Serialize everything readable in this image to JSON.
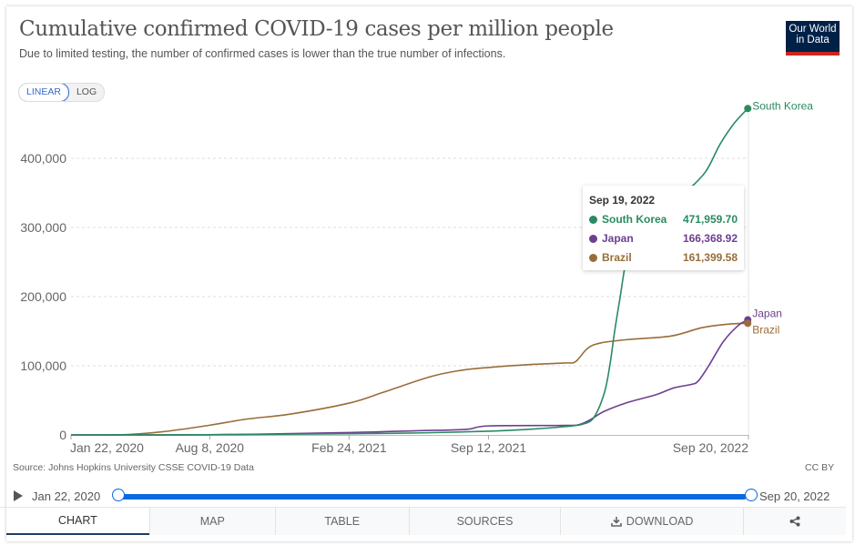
{
  "header": {
    "title": "Cumulative confirmed COVID-19 cases per million people",
    "subtitle": "Due to limited testing, the number of confirmed cases is lower than the true number of infections.",
    "logo_line1": "Our World",
    "logo_line2": "in Data"
  },
  "scale_toggle": {
    "options": [
      "LINEAR",
      "LOG"
    ],
    "selected": "LINEAR"
  },
  "tooltip": {
    "date": "Sep 19, 2022",
    "rows": [
      {
        "name": "South Korea",
        "value": "471,959.70",
        "color": "#2a8a62"
      },
      {
        "name": "Japan",
        "value": "166,368.92",
        "color": "#6d3e91"
      },
      {
        "name": "Brazil",
        "value": "161,399.58",
        "color": "#996d39"
      }
    ]
  },
  "footer": {
    "source": "Source: Johns Hopkins University CSSE COVID-19 Data",
    "license": "CC BY"
  },
  "timeline": {
    "start_label": "Jan 22, 2020",
    "end_label": "Sep 20, 2022",
    "range_start_fraction": 0,
    "range_end_fraction": 1
  },
  "tabs": [
    {
      "label": "CHART",
      "active": true,
      "icon": ""
    },
    {
      "label": "MAP",
      "active": false,
      "icon": ""
    },
    {
      "label": "TABLE",
      "active": false,
      "icon": ""
    },
    {
      "label": "SOURCES",
      "active": false,
      "icon": ""
    },
    {
      "label": "DOWNLOAD",
      "active": false,
      "icon": "download-icon"
    },
    {
      "label": "",
      "active": false,
      "icon": "share-icon"
    }
  ],
  "chart_data": {
    "type": "line",
    "title": "Cumulative confirmed COVID-19 cases per million people",
    "xlabel": "",
    "ylabel": "",
    "x_type": "date",
    "x_range": [
      "2020-01-22",
      "2022-09-20"
    ],
    "x_ticks": [
      {
        "date": "2020-01-22",
        "label": "Jan 22, 2020"
      },
      {
        "date": "2020-08-08",
        "label": "Aug 8, 2020"
      },
      {
        "date": "2021-02-24",
        "label": "Feb 24, 2021"
      },
      {
        "date": "2021-09-12",
        "label": "Sep 12, 2021"
      },
      {
        "date": "2022-09-20",
        "label": "Sep 20, 2022"
      }
    ],
    "ylim": [
      0,
      480000
    ],
    "y_ticks": [
      {
        "value": 0,
        "label": "0"
      },
      {
        "value": 100000,
        "label": "100,000"
      },
      {
        "value": 200000,
        "label": "200,000"
      },
      {
        "value": 300000,
        "label": "300,000"
      },
      {
        "value": 400000,
        "label": "400,000"
      }
    ],
    "grid": "horizontal-dashed",
    "legend": "inline-right",
    "series": [
      {
        "name": "South Korea",
        "color": "#2a8a62",
        "points": [
          [
            "2020-01-22",
            0
          ],
          [
            "2020-08-08",
            300
          ],
          [
            "2021-02-24",
            1700
          ],
          [
            "2021-06-01",
            2800
          ],
          [
            "2021-09-12",
            5300
          ],
          [
            "2021-11-15",
            8500
          ],
          [
            "2021-12-31",
            12000
          ],
          [
            "2022-01-25",
            15500
          ],
          [
            "2022-02-10",
            25000
          ],
          [
            "2022-02-25",
            60000
          ],
          [
            "2022-03-05",
            100000
          ],
          [
            "2022-03-12",
            150000
          ],
          [
            "2022-03-20",
            200000
          ],
          [
            "2022-03-28",
            250000
          ],
          [
            "2022-04-08",
            290000
          ],
          [
            "2022-04-25",
            315000
          ],
          [
            "2022-05-20",
            330000
          ],
          [
            "2022-06-20",
            350000
          ],
          [
            "2022-07-20",
            380000
          ],
          [
            "2022-08-10",
            420000
          ],
          [
            "2022-08-30",
            450000
          ],
          [
            "2022-09-19",
            471960
          ]
        ]
      },
      {
        "name": "Japan",
        "color": "#6d3e91",
        "points": [
          [
            "2020-01-22",
            0
          ],
          [
            "2020-08-08",
            300
          ],
          [
            "2021-02-24",
            3400
          ],
          [
            "2021-06-01",
            6000
          ],
          [
            "2021-08-10",
            8000
          ],
          [
            "2021-09-12",
            13000
          ],
          [
            "2021-12-31",
            13700
          ],
          [
            "2022-01-20",
            15000
          ],
          [
            "2022-02-05",
            22000
          ],
          [
            "2022-02-25",
            34000
          ],
          [
            "2022-03-31",
            47000
          ],
          [
            "2022-05-10",
            58000
          ],
          [
            "2022-06-05",
            68000
          ],
          [
            "2022-06-30",
            73000
          ],
          [
            "2022-07-10",
            78000
          ],
          [
            "2022-07-25",
            100000
          ],
          [
            "2022-08-15",
            135000
          ],
          [
            "2022-09-05",
            158000
          ],
          [
            "2022-09-19",
            166369
          ]
        ]
      },
      {
        "name": "Brazil",
        "color": "#996d39",
        "points": [
          [
            "2020-01-22",
            0
          ],
          [
            "2020-04-01",
            100
          ],
          [
            "2020-06-01",
            4500
          ],
          [
            "2020-08-08",
            14000
          ],
          [
            "2020-10-01",
            23000
          ],
          [
            "2020-12-01",
            30000
          ],
          [
            "2021-02-24",
            46000
          ],
          [
            "2021-04-15",
            62000
          ],
          [
            "2021-06-20",
            84000
          ],
          [
            "2021-08-01",
            93000
          ],
          [
            "2021-09-12",
            97500
          ],
          [
            "2021-11-15",
            102000
          ],
          [
            "2021-12-31",
            104000
          ],
          [
            "2022-01-15",
            106000
          ],
          [
            "2022-02-01",
            125000
          ],
          [
            "2022-02-20",
            133000
          ],
          [
            "2022-04-01",
            138000
          ],
          [
            "2022-06-01",
            143000
          ],
          [
            "2022-07-15",
            155000
          ],
          [
            "2022-08-20",
            160000
          ],
          [
            "2022-09-19",
            161400
          ]
        ]
      }
    ]
  }
}
